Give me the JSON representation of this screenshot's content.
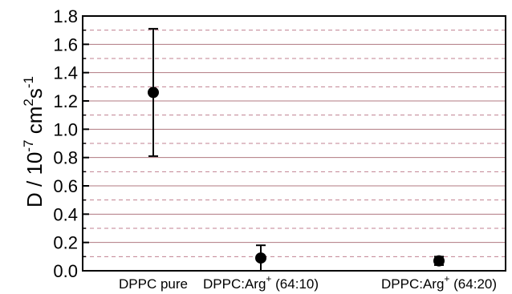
{
  "chart_data": {
    "type": "scatter",
    "categories": [
      "DPPC pure",
      "DPPC:Arg",
      "DPPC:Arg"
    ],
    "category_suffix": [
      "",
      "(64:10)",
      "(64:20)"
    ],
    "category_superscript": [
      "",
      "+",
      "+"
    ],
    "values": [
      1.26,
      0.09,
      0.07
    ],
    "err_low": [
      0.81,
      0.0,
      0.04
    ],
    "err_high": [
      1.71,
      0.18,
      0.1
    ],
    "ylim": [
      0.0,
      1.8
    ],
    "yticks": [
      "0.0",
      "0.2",
      "0.4",
      "0.6",
      "0.8",
      "1.0",
      "1.2",
      "1.4",
      "1.6",
      "1.8"
    ],
    "ylabel": {
      "main": "D / 10",
      "exp1": "-7",
      "unit1": " cm",
      "exp2": "2",
      "unit2": "s",
      "exp3": "-1"
    },
    "grid": true,
    "grid_major_color": "#b07880",
    "grid_minor_color": "#c08090",
    "marker_color": "#000000",
    "legend": "none"
  }
}
